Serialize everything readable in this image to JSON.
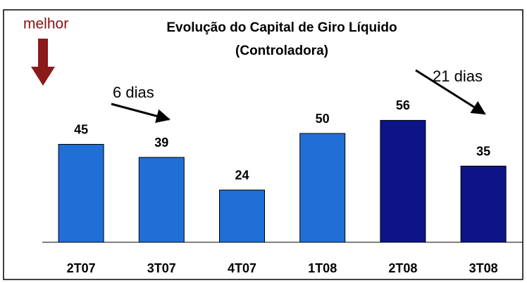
{
  "chart_data": {
    "type": "bar",
    "title": "Evolução do Capital de Giro Líquido",
    "subtitle": "(Controladora)",
    "categories": [
      "2T07",
      "3T07",
      "4T07",
      "1T08",
      "2T08",
      "3T08"
    ],
    "values": [
      45,
      39,
      24,
      50,
      56,
      35
    ],
    "colors": [
      "#1f6fd6",
      "#1f6fd6",
      "#1f6fd6",
      "#1f6fd6",
      "#0c1488",
      "#0c1488"
    ],
    "annotations": [
      "melhor",
      "6 dias",
      "21 dias"
    ]
  }
}
